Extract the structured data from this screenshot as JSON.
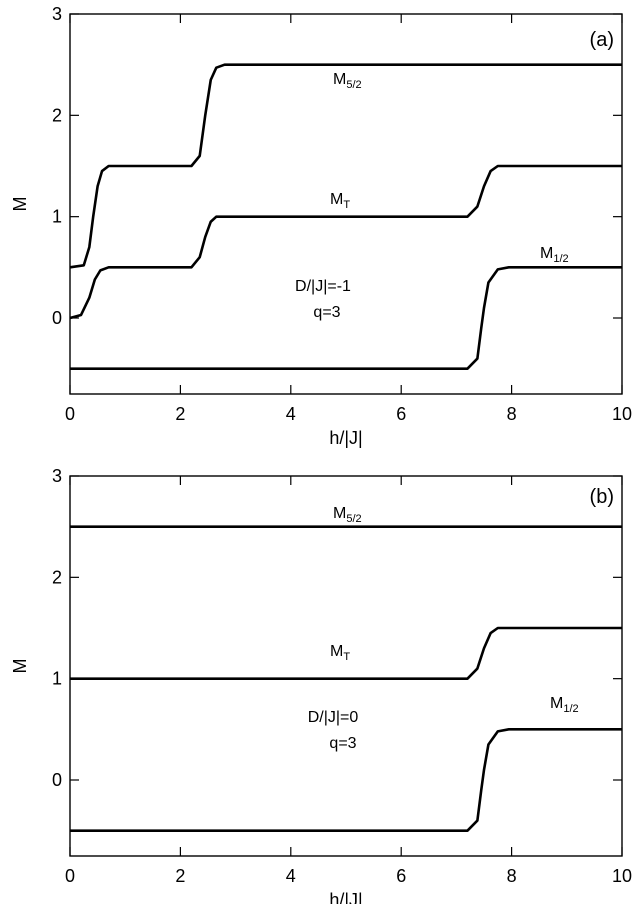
{
  "chart_data": [
    {
      "type": "line",
      "panel_label": "(a)",
      "xlabel": "h/|J|",
      "ylabel": "M",
      "xlim": [
        0,
        10
      ],
      "ylim": [
        -0.75,
        3
      ],
      "xticks": [
        0,
        2,
        4,
        6,
        8,
        10
      ],
      "yticks": [
        0,
        1,
        2,
        3
      ],
      "annotation_lines": [
        "D/|J|=-1",
        "q=3"
      ],
      "series": [
        {
          "name": "M5/2",
          "label_main": "M",
          "label_sub": "5/2",
          "x": [
            0,
            0.25,
            0.35,
            0.42,
            0.5,
            0.58,
            0.7,
            0.9,
            2.2,
            2.35,
            2.45,
            2.55,
            2.65,
            2.8,
            3.0,
            10
          ],
          "y": [
            0.5,
            0.52,
            0.7,
            1.0,
            1.3,
            1.45,
            1.5,
            1.5,
            1.5,
            1.6,
            2.0,
            2.35,
            2.47,
            2.5,
            2.5,
            2.5
          ]
        },
        {
          "name": "MT",
          "label_main": "M",
          "label_sub": "T",
          "x": [
            0,
            0.2,
            0.35,
            0.45,
            0.55,
            0.7,
            0.9,
            2.2,
            2.35,
            2.45,
            2.55,
            2.65,
            2.8,
            3.0,
            7.2,
            7.38,
            7.5,
            7.62,
            7.75,
            7.95,
            10
          ],
          "y": [
            0,
            0.03,
            0.2,
            0.38,
            0.47,
            0.5,
            0.5,
            0.5,
            0.6,
            0.8,
            0.95,
            1.0,
            1.0,
            1.0,
            1.0,
            1.1,
            1.3,
            1.45,
            1.5,
            1.5,
            1.5
          ]
        },
        {
          "name": "M1/2",
          "label_main": "M",
          "label_sub": "1/2",
          "x": [
            0,
            7.2,
            7.38,
            7.45,
            7.5,
            7.58,
            7.75,
            7.95,
            10
          ],
          "y": [
            -0.5,
            -0.5,
            -0.4,
            -0.1,
            0.1,
            0.35,
            0.48,
            0.5,
            0.5
          ]
        }
      ]
    },
    {
      "type": "line",
      "panel_label": "(b)",
      "xlabel": "h/|J|",
      "ylabel": "M",
      "xlim": [
        0,
        10
      ],
      "ylim": [
        -0.75,
        3
      ],
      "xticks": [
        0,
        2,
        4,
        6,
        8,
        10
      ],
      "yticks": [
        0,
        1,
        2,
        3
      ],
      "annotation_lines": [
        "D/|J|=0",
        "q=3"
      ],
      "series": [
        {
          "name": "M5/2",
          "label_main": "M",
          "label_sub": "5/2",
          "x": [
            0,
            10
          ],
          "y": [
            2.5,
            2.5
          ]
        },
        {
          "name": "MT",
          "label_main": "M",
          "label_sub": "T",
          "x": [
            0,
            7.2,
            7.38,
            7.5,
            7.62,
            7.75,
            7.95,
            10
          ],
          "y": [
            1.0,
            1.0,
            1.1,
            1.3,
            1.45,
            1.5,
            1.5,
            1.5
          ]
        },
        {
          "name": "M1/2",
          "label_main": "M",
          "label_sub": "1/2",
          "x": [
            0,
            7.2,
            7.38,
            7.45,
            7.5,
            7.58,
            7.75,
            7.95,
            10
          ],
          "y": [
            -0.5,
            -0.5,
            -0.4,
            -0.1,
            0.1,
            0.35,
            0.48,
            0.5,
            0.5
          ]
        }
      ]
    }
  ]
}
